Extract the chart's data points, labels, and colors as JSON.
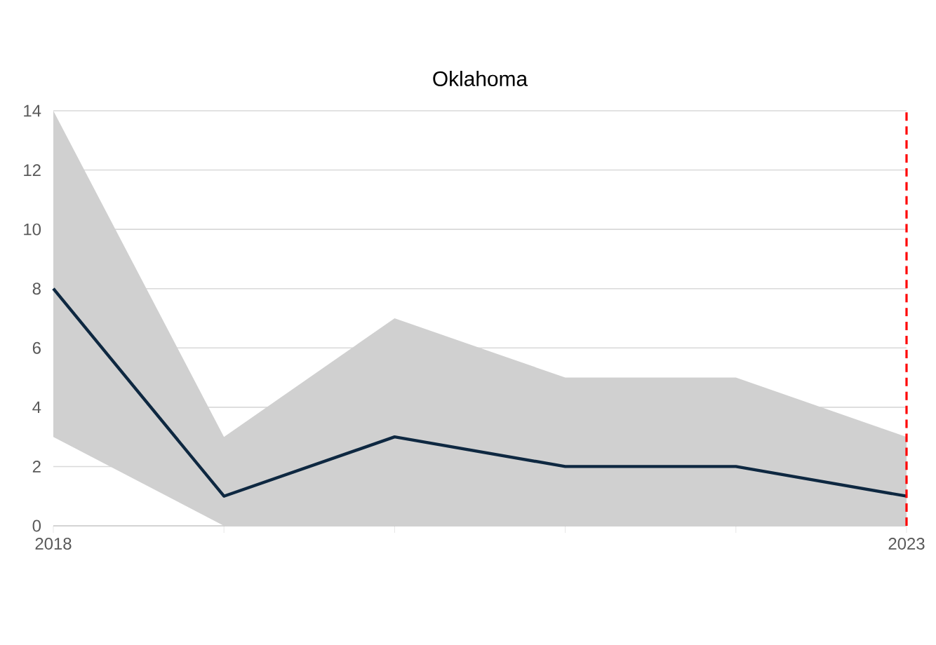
{
  "chart_data": {
    "type": "line",
    "title": "Oklahoma",
    "x": [
      "2018",
      "2019",
      "2020",
      "2021",
      "2022",
      "2023"
    ],
    "series": [
      {
        "color": "#0e2841",
        "values": [
          8,
          1,
          3,
          2,
          2,
          1
        ],
        "lower": [
          3,
          0,
          0,
          0,
          0,
          0
        ],
        "upper": [
          14,
          3,
          7,
          5,
          5,
          3
        ]
      }
    ],
    "xlim": [
      "2018",
      "2023"
    ],
    "xticks": [
      {
        "value": "2018",
        "label": "2018"
      },
      {
        "value": "2019",
        "label": null
      },
      {
        "value": "2020",
        "label": null
      },
      {
        "value": "2021",
        "label": null
      },
      {
        "value": "2022",
        "label": null
      },
      {
        "value": "2023",
        "label": "2023"
      }
    ],
    "ylim": [
      0,
      14
    ],
    "yticks": [
      0,
      2,
      4,
      6,
      8,
      10,
      12,
      14
    ],
    "grid": "y",
    "marker": "none",
    "line_style": "solid",
    "ref_lines": [
      {
        "axis": "x",
        "value": "2023",
        "color": "#ff0000",
        "line_style": "dashed"
      }
    ]
  }
}
